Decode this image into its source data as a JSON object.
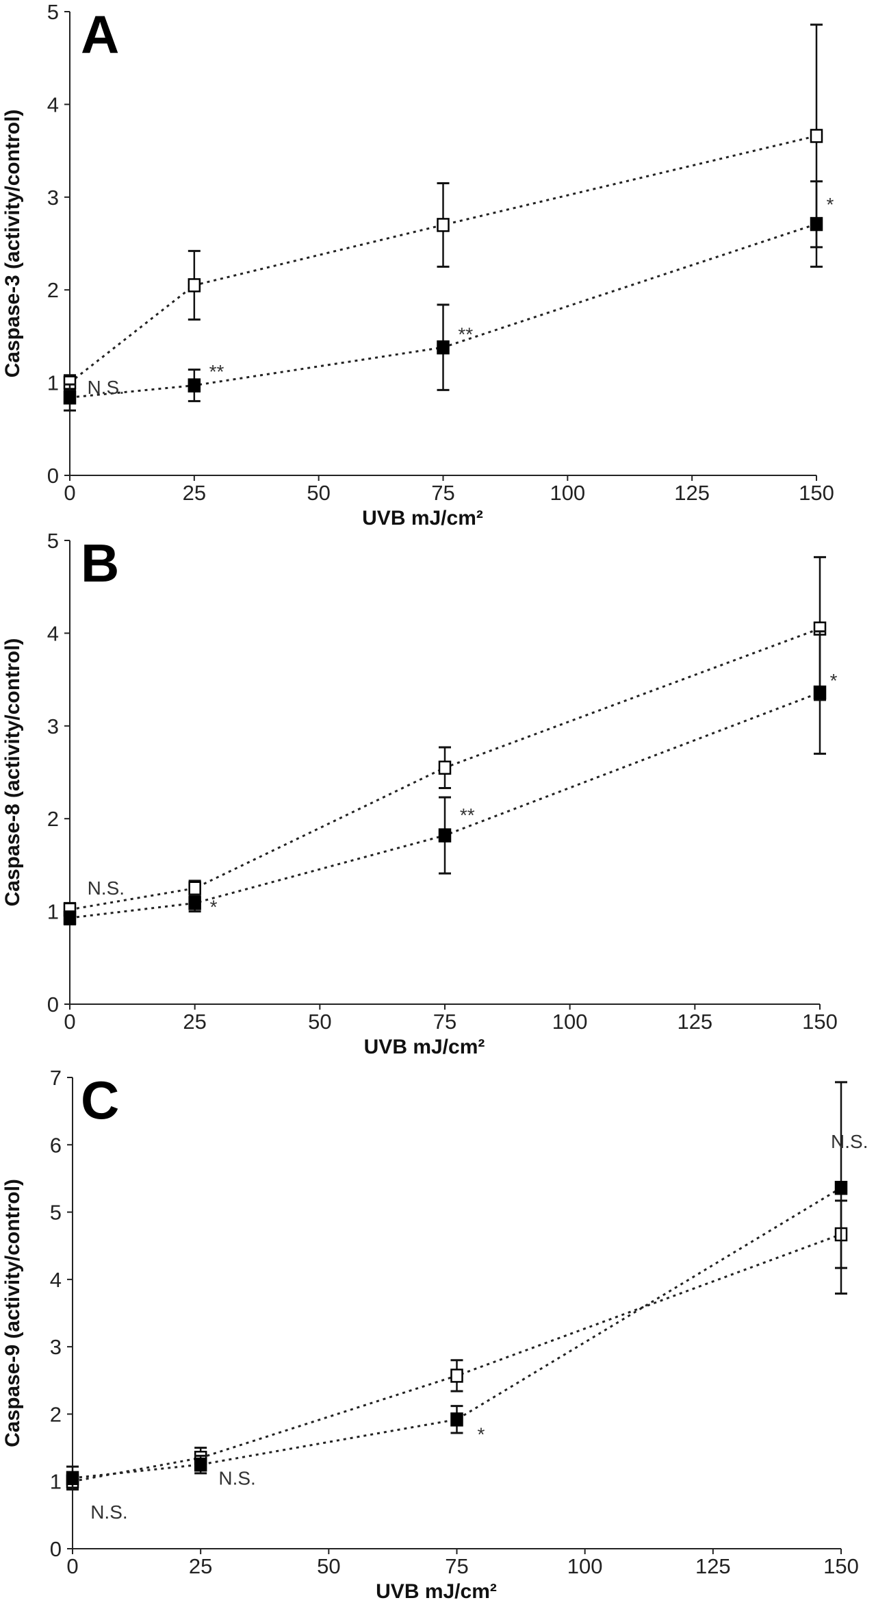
{
  "chart_data": [
    {
      "type": "line",
      "panel_label": "A",
      "xlabel": "UVB mJ/cm²",
      "ylabel": "Caspase-3 (activity/control)",
      "x": [
        0,
        25,
        75,
        150
      ],
      "xticks": [
        "0",
        "25",
        "50",
        "75",
        "100",
        "125",
        "150"
      ],
      "yticks": [
        "0",
        "1",
        "2",
        "3",
        "4",
        "5"
      ],
      "xlim": [
        0,
        150
      ],
      "ylim": [
        0,
        5
      ],
      "grid": false,
      "series": [
        {
          "marker": "open-square",
          "values": [
            1.0,
            2.05,
            2.7,
            3.66
          ],
          "error": [
            0.08,
            0.37,
            0.45,
            1.2
          ]
        },
        {
          "marker": "filled-square",
          "values": [
            0.84,
            0.97,
            1.38,
            2.71
          ],
          "error": [
            0.14,
            0.17,
            0.46,
            0.46
          ]
        }
      ],
      "annotations": [
        {
          "text": "N.S.",
          "x": 3.5,
          "y": 0.88
        },
        {
          "text": "**",
          "x": 28,
          "y": 1.05
        },
        {
          "text": "**",
          "x": 78,
          "y": 1.45
        },
        {
          "text": "*",
          "x": 152,
          "y": 2.85
        }
      ]
    },
    {
      "type": "line",
      "panel_label": "B",
      "xlabel": "UVB mJ/cm²",
      "ylabel": "Caspase-8 (activity/control)",
      "x": [
        0,
        25,
        75,
        150
      ],
      "xticks": [
        "0",
        "25",
        "50",
        "75",
        "100",
        "125",
        "150"
      ],
      "yticks": [
        "0",
        "1",
        "2",
        "3",
        "4",
        "5"
      ],
      "xlim": [
        0,
        150
      ],
      "ylim": [
        0,
        5
      ],
      "grid": false,
      "series": [
        {
          "marker": "open-square",
          "values": [
            1.02,
            1.25,
            2.55,
            4.05
          ],
          "error": [
            0.07,
            0.08,
            0.22,
            0.77
          ]
        },
        {
          "marker": "filled-square",
          "values": [
            0.93,
            1.09,
            1.82,
            3.36
          ],
          "error": [
            0.07,
            0.09,
            0.41,
            0.66
          ]
        }
      ],
      "annotations": [
        {
          "text": "N.S.",
          "x": 3.5,
          "y": 1.18
        },
        {
          "text": "*",
          "x": 28,
          "y": 0.98
        },
        {
          "text": "**",
          "x": 78,
          "y": 1.97
        },
        {
          "text": "*",
          "x": 152,
          "y": 3.42
        }
      ]
    },
    {
      "type": "line",
      "panel_label": "C",
      "xlabel": "UVB mJ/cm²",
      "ylabel": "Caspase-9 (activity/control)",
      "x": [
        0,
        25,
        75,
        150
      ],
      "xticks": [
        "0",
        "25",
        "50",
        "75",
        "100",
        "125",
        "150"
      ],
      "yticks": [
        "0",
        "1",
        "2",
        "3",
        "4",
        "5",
        "6",
        "7"
      ],
      "xlim": [
        0,
        150
      ],
      "ylim": [
        0,
        7
      ],
      "grid": false,
      "series": [
        {
          "marker": "open-square",
          "values": [
            1.0,
            1.35,
            2.57,
            4.67
          ],
          "error": [
            0.12,
            0.15,
            0.23,
            0.5
          ]
        },
        {
          "marker": "filled-square",
          "values": [
            1.05,
            1.25,
            1.92,
            5.36
          ],
          "error": [
            0.17,
            0.13,
            0.2,
            1.57
          ]
        }
      ],
      "annotations": [
        {
          "text": "N.S.",
          "x": 3.5,
          "y": 0.45
        },
        {
          "text": "N.S.",
          "x": 28.5,
          "y": 0.95
        },
        {
          "text": "*",
          "x": 79,
          "y": 1.6
        },
        {
          "text": "N.S.",
          "x": 148,
          "y": 5.95
        }
      ]
    }
  ]
}
